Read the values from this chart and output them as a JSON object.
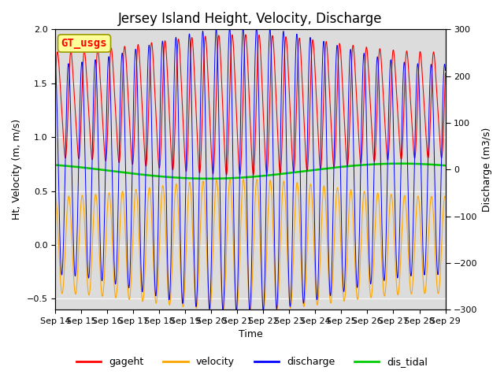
{
  "title": "Jersey Island Height, Velocity, Discharge",
  "xlabel": "Time",
  "ylabel_left": "Ht, Velocity (m, m/s)",
  "ylabel_right": "Discharge (m3/s)",
  "ylim_left": [
    -0.6,
    2.0
  ],
  "ylim_right": [
    -300,
    300
  ],
  "date_start": 14,
  "date_end": 29,
  "x_ticks": [
    14,
    15,
    16,
    17,
    18,
    19,
    20,
    21,
    22,
    23,
    24,
    25,
    26,
    27,
    28,
    29
  ],
  "x_tick_labels": [
    "Sep 14",
    "Sep 15",
    "Sep 16",
    "Sep 17",
    "Sep 18",
    "Sep 19",
    "Sep 20",
    "Sep 21",
    "Sep 22",
    "Sep 23",
    "Sep 24",
    "Sep 25",
    "Sep 26",
    "Sep 27",
    "Sep 28",
    "Sep 29"
  ],
  "color_gageht": "#FF0000",
  "color_velocity": "#FFA500",
  "color_discharge": "#0000FF",
  "color_dis_tidal": "#00CC00",
  "legend_labels": [
    "gageht",
    "velocity",
    "discharge",
    "dis_tidal"
  ],
  "watermark_text": "GT_usgs",
  "watermark_color": "#FF0000",
  "watermark_bg": "#FFFF99",
  "background_color": "#DCDCDC",
  "tidal_period_hours": 12.4,
  "n_points": 3000,
  "title_fontsize": 12,
  "axis_label_fontsize": 9,
  "tick_fontsize": 8,
  "legend_fontsize": 9
}
